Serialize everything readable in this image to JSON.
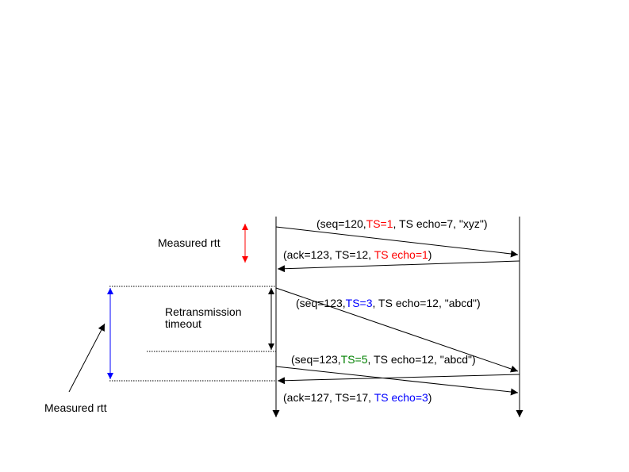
{
  "colors": {
    "red": "#ff0000",
    "blue": "#0000ff",
    "green": "#008000",
    "black": "#000000"
  },
  "labels": {
    "measured_rtt_top": "Measured rtt",
    "retransmission_line1": "Retransmission",
    "retransmission_line2": "timeout",
    "measured_rtt_bottom": "Measured rtt"
  },
  "messages": [
    {
      "id": "msg1",
      "parts": [
        {
          "text": "(seq=120,",
          "color": "black"
        },
        {
          "text": "TS=1",
          "color": "red"
        },
        {
          "text": ", TS echo=7, \"xyz\")",
          "color": "black"
        }
      ]
    },
    {
      "id": "msg2",
      "parts": [
        {
          "text": "(ack=123, TS=12, ",
          "color": "black"
        },
        {
          "text": "TS echo=1",
          "color": "red"
        },
        {
          "text": ")",
          "color": "black"
        }
      ]
    },
    {
      "id": "msg3",
      "parts": [
        {
          "text": "(seq=123,",
          "color": "black"
        },
        {
          "text": "TS=3",
          "color": "blue"
        },
        {
          "text": ", TS echo=12, \"abcd\")",
          "color": "black"
        }
      ]
    },
    {
      "id": "msg4",
      "parts": [
        {
          "text": "(seq=123,",
          "color": "black"
        },
        {
          "text": "TS=5",
          "color": "green"
        },
        {
          "text": ", TS echo=12, \"abcd\")",
          "color": "black"
        }
      ]
    },
    {
      "id": "msg5",
      "parts": [
        {
          "text": "(ack=127, TS=17, ",
          "color": "black"
        },
        {
          "text": "TS echo=3",
          "color": "blue"
        },
        {
          "text": ")",
          "color": "black"
        }
      ]
    }
  ]
}
